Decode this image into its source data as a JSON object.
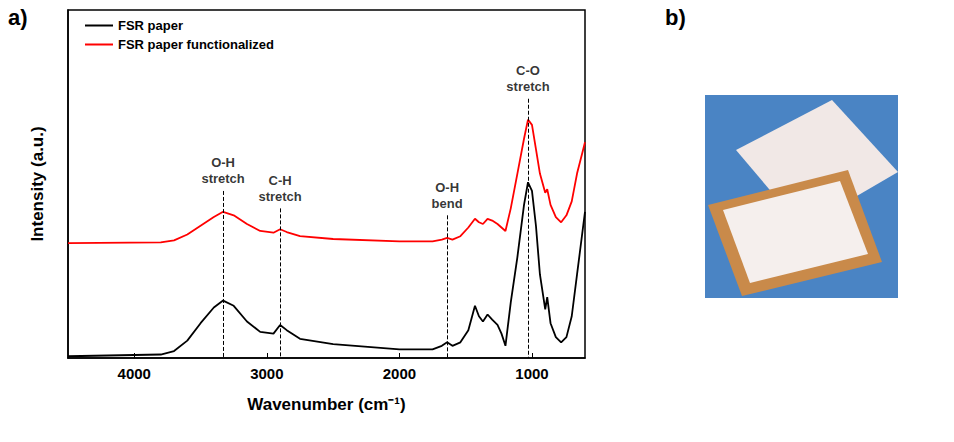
{
  "chart_data": {
    "type": "line",
    "panel_label": "a)",
    "x_label": "Wavenumber (cm⁻¹)",
    "y_label": "Intensity (a.u.)",
    "x": [
      4500,
      3800,
      3700,
      3600,
      3500,
      3400,
      3330,
      3250,
      3150,
      3050,
      2950,
      2900,
      2850,
      2750,
      2500,
      2000,
      1750,
      1680,
      1640,
      1600,
      1540,
      1480,
      1430,
      1400,
      1370,
      1335,
      1300,
      1260,
      1230,
      1200,
      1160,
      1110,
      1060,
      1030,
      1000,
      970,
      940,
      900,
      885,
      860,
      820,
      780,
      740,
      700,
      660,
      620,
      600
    ],
    "series": [
      {
        "name": "FSR paper",
        "color": "#000000",
        "values": [
          0.05,
          0.1,
          0.2,
          0.5,
          1.0,
          1.45,
          1.65,
          1.5,
          1.05,
          0.75,
          0.7,
          0.95,
          0.8,
          0.55,
          0.4,
          0.25,
          0.25,
          0.35,
          0.45,
          0.35,
          0.45,
          0.8,
          1.5,
          1.2,
          1.05,
          1.25,
          1.1,
          0.95,
          0.7,
          0.35,
          1.6,
          2.9,
          4.4,
          5.05,
          4.8,
          3.8,
          2.4,
          1.4,
          1.75,
          1.0,
          0.6,
          0.45,
          0.6,
          1.2,
          2.4,
          3.6,
          4.2
        ]
      },
      {
        "name": "FSR paper functionalized",
        "color": "#ff0000",
        "values": [
          3.3,
          3.32,
          3.38,
          3.55,
          3.8,
          4.05,
          4.2,
          4.1,
          3.85,
          3.65,
          3.6,
          3.7,
          3.62,
          3.5,
          3.42,
          3.35,
          3.35,
          3.4,
          3.45,
          3.4,
          3.5,
          3.75,
          4.0,
          3.9,
          3.85,
          4.0,
          3.95,
          3.85,
          3.75,
          3.65,
          4.3,
          5.3,
          6.3,
          6.85,
          6.7,
          6.0,
          5.3,
          4.75,
          4.85,
          4.4,
          4.05,
          3.9,
          4.1,
          4.5,
          5.3,
          5.9,
          6.2
        ]
      }
    ],
    "annotations": [
      {
        "text": "O-H\nstretch",
        "x": 3330
      },
      {
        "text": "C-H\nstretch",
        "x": 2900
      },
      {
        "text": "O-H\nbend",
        "x": 1640
      },
      {
        "text": "C-O\nstretch",
        "x": 1030
      }
    ],
    "xlim": [
      4500,
      600
    ],
    "xticks": [
      4000,
      3000,
      2000,
      1000
    ],
    "ylim": [
      0,
      10
    ],
    "tick_labels": "x",
    "grid": false,
    "legend": "upper left"
  },
  "figure_b": {
    "panel_label": "b)"
  }
}
